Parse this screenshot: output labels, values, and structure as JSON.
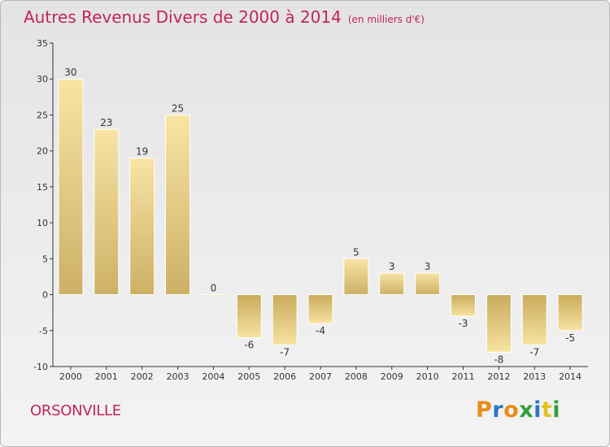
{
  "title": {
    "main": "Autres Revenus Divers de 2000 à 2014",
    "unit": "(en milliers d'€)"
  },
  "commune": "ORSONVILLE",
  "brand": {
    "letters": [
      "P",
      "r",
      "o",
      "x",
      "i",
      "t",
      "i"
    ],
    "colors": [
      "#e98c1a",
      "#2b78c4",
      "#e98c1a",
      "#2fa13a",
      "#2b78c4",
      "#e0c21a",
      "#2fa13a"
    ]
  },
  "colors": {
    "title": "#c2245b",
    "bar_light": "#f7e3a1",
    "bar_dark": "#c9ab5c"
  },
  "chart_data": {
    "type": "bar",
    "categories": [
      "2000",
      "2001",
      "2002",
      "2003",
      "2004",
      "2005",
      "2006",
      "2007",
      "2008",
      "2009",
      "2010",
      "2011",
      "2012",
      "2013",
      "2014"
    ],
    "values": [
      30,
      23,
      19,
      25,
      0,
      -6,
      -7,
      -4,
      5,
      3,
      3,
      -3,
      -8,
      -7,
      -5
    ],
    "ylim": [
      -10,
      35
    ],
    "yticks": [
      -10,
      -5,
      0,
      5,
      10,
      15,
      20,
      25,
      30,
      35
    ],
    "grid": false,
    "legend": "none"
  }
}
